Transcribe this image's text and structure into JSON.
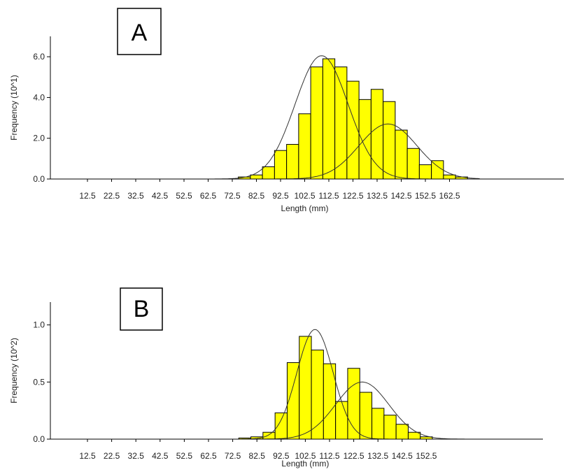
{
  "bar_color": "#ffff00",
  "chart_data": [
    {
      "panel_label": "A",
      "type": "bar",
      "xlabel": "Length (mm)",
      "ylabel": "Frequency (10^1)",
      "x_ticks": [
        "12.5",
        "22.5",
        "32.5",
        "42.5",
        "52.5",
        "62.5",
        "72.5",
        "82.5",
        "92.5",
        "102.5",
        "112.5",
        "122.5",
        "132.5",
        "142.5",
        "152.5",
        "162.5"
      ],
      "y_ticks": [
        "0.0",
        "2.0",
        "4.0",
        "6.0"
      ],
      "ylim": [
        0,
        7
      ],
      "bin_width": 5,
      "x": [
        70,
        75,
        80,
        85,
        90,
        95,
        100,
        105,
        110,
        115,
        120,
        125,
        130,
        135,
        140,
        145,
        150,
        155,
        160,
        165
      ],
      "values": [
        0.0,
        0.1,
        0.2,
        0.6,
        1.4,
        1.7,
        3.2,
        5.5,
        5.9,
        5.5,
        4.8,
        3.9,
        4.4,
        3.8,
        2.4,
        1.5,
        0.7,
        0.9,
        0.2,
        0.1
      ],
      "fitted_components": [
        {
          "mean": 109.5,
          "sd": 11,
          "peak": 6.05
        },
        {
          "mean": 137,
          "sd": 12,
          "peak": 2.7
        }
      ]
    },
    {
      "panel_label": "B",
      "type": "bar",
      "xlabel": "Length (mm)",
      "ylabel": "Frequency (10^2)",
      "x_ticks": [
        "12.5",
        "22.5",
        "32.5",
        "42.5",
        "52.5",
        "62.5",
        "72.5",
        "82.5",
        "92.5",
        "102.5",
        "112.5",
        "122.5",
        "132.5",
        "142.5",
        "152.5"
      ],
      "y_ticks": [
        "0.0",
        "0.5",
        "1.0"
      ],
      "ylim": [
        0,
        1.2
      ],
      "bin_width": 5,
      "x": [
        75,
        80,
        85,
        90,
        95,
        100,
        105,
        110,
        115,
        120,
        125,
        130,
        135,
        140,
        145,
        150
      ],
      "values": [
        0.01,
        0.02,
        0.06,
        0.23,
        0.67,
        0.9,
        0.78,
        0.66,
        0.33,
        0.62,
        0.41,
        0.27,
        0.21,
        0.13,
        0.06,
        0.02
      ],
      "fitted_components": [
        {
          "mean": 106.5,
          "sd": 7.5,
          "peak": 0.96
        },
        {
          "mean": 126,
          "sd": 11,
          "peak": 0.5
        }
      ]
    }
  ]
}
